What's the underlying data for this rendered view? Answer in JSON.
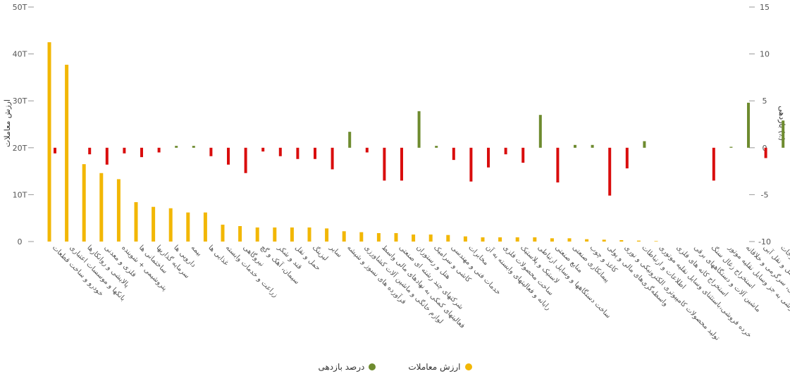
{
  "chart_data": {
    "type": "bar",
    "colors": {
      "value": "#F2B705",
      "positive": "#6E8B2F",
      "negative": "#D90D0D"
    },
    "grid": false,
    "legend_position": "bottom-center",
    "left_axis": {
      "title": "ارزش معاملات",
      "ticks": [
        "0",
        "10T",
        "20T",
        "30T",
        "40T",
        "50T"
      ],
      "range": [
        0,
        50
      ]
    },
    "right_axis": {
      "title": "بازدهی (٪)",
      "ticks": [
        "-10",
        "-5",
        "0",
        "5",
        "10",
        "15"
      ],
      "range": [
        -10,
        15
      ]
    },
    "categories": [
      "خودرو و ساخت قطعات",
      "بانکها و موسسات اعتباری",
      "پالایشی و روانکارها",
      "فلزی و معدنی",
      "پتروشیمی + شوینده",
      "ساختمانی ها",
      "سرمایه گذاریها",
      "دارویی ها",
      "بیمه",
      "غذایی ها",
      "زراعت و خدمات وابسته",
      "نیروگاهی",
      "سیمان، آهک و گچ",
      "قند و شکر",
      "حمل و نقل",
      "لیزینگ",
      "سایر",
      "فرآورده های نسوز و شیشه",
      "لوازم خانگی و ماشین آلات کشاورزی",
      "فعالیتهای کمکی به نهادهای مالی واسط",
      "شرکتهای چند رشته ای صنعتی",
      "هتل و رستوران",
      "کاشی و سرامیک",
      "خدمات فنی و مهندسی",
      "مخابرات",
      "رایانه و فعالیتهای وابسته به آن",
      "ساخت محصولات فلزی",
      "لاستیک و پلاستیک",
      "ساخت دستگاهها و وسایل ارتباطی",
      "منابع صنعتی",
      "پیمانکاری صنعتی",
      "کاغذ و چوب",
      "واسطه‌گری‌های مالی و پولی",
      "تولید محصولات کامپیوتری الکترونیکی و نوری",
      "اطلاعات و ارتباطات",
      "خرده فروشی،باستثنای وسایل نقلیه موتوری",
      "استخراج کانه های فلزی",
      "ماشین آلات و دستگاههای برقی",
      "استخراج زغال سنگ",
      "تجارت عمده فروشی به جز وسایل نقلیه موتور",
      "فعالیت های هنری، سرگرمی و خلاقانه",
      "حمل و نقل آبی",
      "منسوجات"
    ],
    "series": [
      {
        "name": "ارزش معاملات",
        "axis": "left",
        "values": [
          42.5,
          37.7,
          16.5,
          14.6,
          13.3,
          8.4,
          7.4,
          7.1,
          6.2,
          6.2,
          3.6,
          3.3,
          3.0,
          3.0,
          3.0,
          3.0,
          2.8,
          2.2,
          2.0,
          1.8,
          1.8,
          1.5,
          1.5,
          1.4,
          1.1,
          0.9,
          0.9,
          0.9,
          0.9,
          0.7,
          0.7,
          0.5,
          0.4,
          0.3,
          0.2,
          0.1,
          0,
          0,
          0,
          0,
          0,
          0,
          0
        ]
      },
      {
        "name": "درصد بازدهی",
        "axis": "right",
        "values": [
          -0.6,
          0,
          -0.7,
          -1.8,
          -0.6,
          -1.0,
          -0.5,
          0.2,
          0.2,
          -0.9,
          -1.8,
          -2.7,
          -0.4,
          -0.9,
          -1.2,
          -1.2,
          -2.3,
          1.7,
          -0.5,
          -3.5,
          -3.5,
          3.9,
          0.2,
          -1.3,
          -3.6,
          -2.1,
          -0.7,
          -1.6,
          3.5,
          -3.7,
          0.3,
          0.3,
          -5.1,
          -2.2,
          0.7,
          0,
          0,
          0,
          -3.5,
          0.1,
          4.8,
          -1.1,
          2.9
        ]
      }
    ]
  },
  "legend": [
    {
      "key": "value",
      "label": "ارزش معاملات"
    },
    {
      "key": "positive",
      "label": "درصد بازدهی"
    }
  ]
}
